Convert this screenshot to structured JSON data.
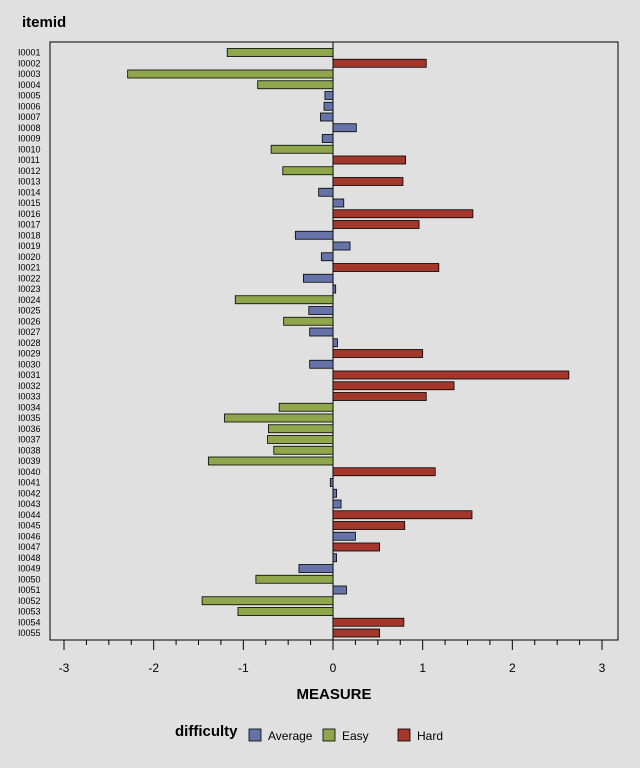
{
  "chart_data": {
    "type": "bar",
    "orientation": "horizontal",
    "ylabel": "itemid",
    "xlabel": "MEASURE",
    "xlim": [
      -3,
      3
    ],
    "xticks": [
      -3,
      -2,
      -1,
      0,
      1,
      2,
      3
    ],
    "grid": false,
    "legend": {
      "title": "difficulty",
      "placement": "bottom",
      "entries": [
        "Average",
        "Easy",
        "Hard"
      ]
    },
    "colors": {
      "Average": "#6673a8",
      "Easy": "#8fa64b",
      "Hard": "#a4372c"
    },
    "categories": [
      "I0001",
      "I0002",
      "I0003",
      "I0004",
      "I0005",
      "I0006",
      "I0007",
      "I0008",
      "I0009",
      "I0010",
      "I0011",
      "I0012",
      "I0013",
      "I0014",
      "I0015",
      "I0016",
      "I0017",
      "I0018",
      "I0019",
      "I0020",
      "I0021",
      "I0022",
      "I0023",
      "I0024",
      "I0025",
      "I0026",
      "I0027",
      "I0028",
      "I0029",
      "I0030",
      "I0031",
      "I0032",
      "I0033",
      "I0034",
      "I0035",
      "I0036",
      "I0037",
      "I0038",
      "I0039",
      "I0040",
      "I0041",
      "I0042",
      "I0043",
      "I0044",
      "I0045",
      "I0046",
      "I0047",
      "I0048",
      "I0049",
      "I0050",
      "I0051",
      "I0052",
      "I0053",
      "I0054",
      "I0055"
    ],
    "values": [
      -1.18,
      1.04,
      -2.29,
      -0.84,
      -0.09,
      -0.1,
      -0.14,
      0.26,
      -0.12,
      -0.69,
      0.81,
      -0.56,
      0.78,
      -0.16,
      0.12,
      1.56,
      0.96,
      -0.42,
      0.19,
      -0.13,
      1.18,
      -0.33,
      0.03,
      -1.09,
      -0.27,
      -0.55,
      -0.26,
      0.05,
      1.0,
      -0.26,
      2.63,
      1.35,
      1.04,
      -0.6,
      -1.21,
      -0.72,
      -0.73,
      -0.66,
      -1.39,
      1.14,
      -0.03,
      0.04,
      0.09,
      1.55,
      0.8,
      0.25,
      0.52,
      0.04,
      -0.38,
      -0.86,
      0.15,
      -1.46,
      -1.06,
      0.79,
      0.52
    ],
    "difficulty": [
      "Easy",
      "Hard",
      "Easy",
      "Easy",
      "Average",
      "Average",
      "Average",
      "Average",
      "Average",
      "Easy",
      "Hard",
      "Easy",
      "Hard",
      "Average",
      "Average",
      "Hard",
      "Hard",
      "Average",
      "Average",
      "Average",
      "Hard",
      "Average",
      "Average",
      "Easy",
      "Average",
      "Easy",
      "Average",
      "Average",
      "Hard",
      "Average",
      "Hard",
      "Hard",
      "Hard",
      "Easy",
      "Easy",
      "Easy",
      "Easy",
      "Easy",
      "Easy",
      "Hard",
      "Average",
      "Average",
      "Average",
      "Hard",
      "Hard",
      "Average",
      "Hard",
      "Average",
      "Average",
      "Easy",
      "Average",
      "Easy",
      "Easy",
      "Hard",
      "Hard"
    ]
  }
}
